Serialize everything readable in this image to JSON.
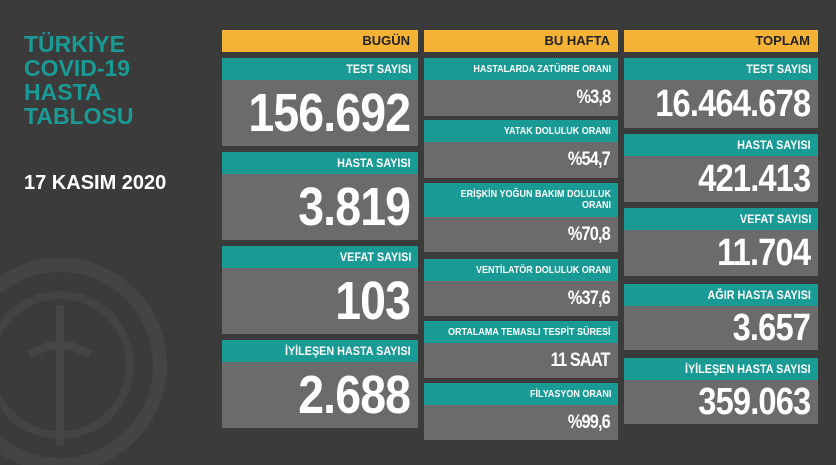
{
  "title": [
    "TÜRKİYE",
    "COVID-19",
    "HASTA",
    "TABLOSU"
  ],
  "date": "17 KASIM 2020",
  "columns": [
    {
      "header": "BUGÜN",
      "items": [
        {
          "label": "TEST SAYISI",
          "value": "156.692"
        },
        {
          "label": "HASTA SAYISI",
          "value": "3.819"
        },
        {
          "label": "VEFAT SAYISI",
          "value": "103"
        },
        {
          "label": "İYİLEŞEN HASTA SAYISI",
          "value": "2.688"
        }
      ]
    },
    {
      "header": "BU HAFTA",
      "items": [
        {
          "label": "HASTALARDA ZATÜRRE ORANI",
          "value": "%3,8"
        },
        {
          "label": "YATAK DOLULUK ORANI",
          "value": "%54,7"
        },
        {
          "label": "ERİŞKİN YOĞUN BAKIM DOLULUK ORANI",
          "value": "%70,8"
        },
        {
          "label": "VENTİLATÖR DOLULUK ORANI",
          "value": "%37,6"
        },
        {
          "label": "ORTALAMA TEMASLI TESPİT SÜRESİ",
          "value": "11 SAAT"
        },
        {
          "label": "FİLYASYON ORANI",
          "value": "%99,6"
        }
      ]
    },
    {
      "header": "TOPLAM",
      "items": [
        {
          "label": "TEST SAYISI",
          "value": "16.464.678"
        },
        {
          "label": "HASTA SAYISI",
          "value": "421.413"
        },
        {
          "label": "VEFAT SAYISI",
          "value": "11.704"
        },
        {
          "label": "AĞIR HASTA SAYISI",
          "value": "3.657"
        },
        {
          "label": "İYİLEŞEN HASTA SAYISI",
          "value": "359.063"
        }
      ]
    }
  ]
}
